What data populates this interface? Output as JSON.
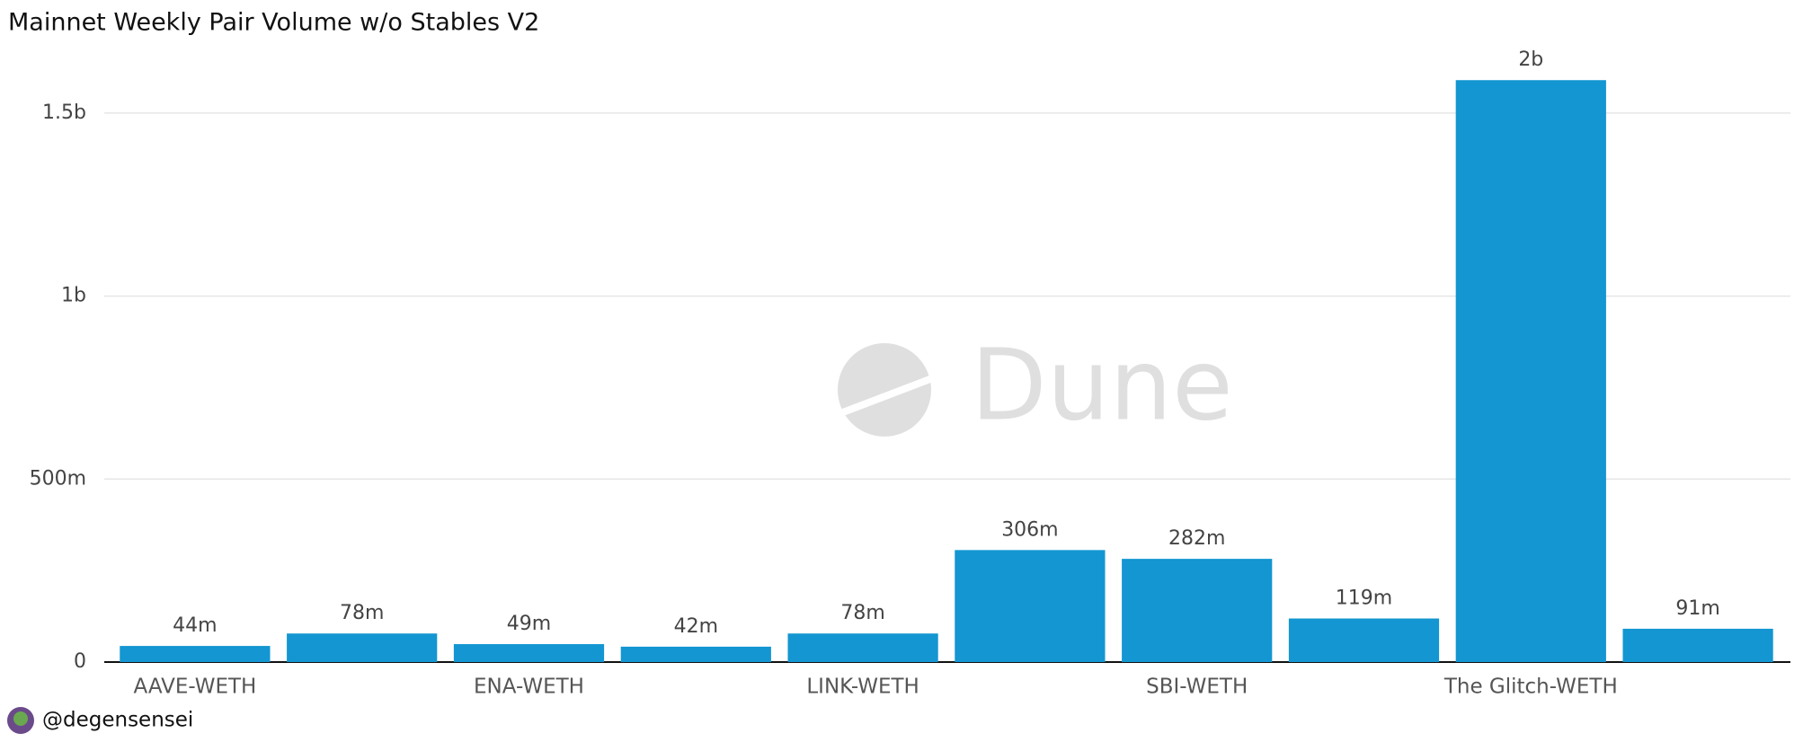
{
  "chart_data": {
    "type": "bar",
    "title": "Mainnet Weekly Pair Volume w/o Stables V2",
    "categories": [
      "AAVE-WETH",
      null,
      "ENA-WETH",
      null,
      "LINK-WETH",
      null,
      "SBI-WETH",
      null,
      "The Glitch-WETH",
      null
    ],
    "values": [
      44000000,
      78000000,
      49000000,
      42000000,
      78000000,
      306000000,
      282000000,
      119000000,
      1590000000,
      91000000
    ],
    "value_labels": [
      "44m",
      "78m",
      "49m",
      "42m",
      "78m",
      "306m",
      "282m",
      "119m",
      "2b",
      "91m"
    ],
    "color": "#1396d1",
    "ylim": [
      0,
      1620000000
    ],
    "yticks": [
      0,
      {
        "value": 500000000,
        "label": "500m"
      },
      {
        "value": 1000000000,
        "label": "1b"
      },
      {
        "value": 1500000000,
        "label": "1.5b"
      }
    ],
    "grid": true,
    "watermark": "Dune",
    "author": "@degensensei"
  }
}
